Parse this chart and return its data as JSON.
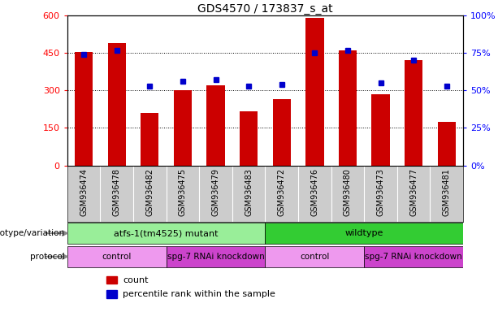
{
  "title": "GDS4570 / 173837_s_at",
  "samples": [
    "GSM936474",
    "GSM936478",
    "GSM936482",
    "GSM936475",
    "GSM936479",
    "GSM936483",
    "GSM936472",
    "GSM936476",
    "GSM936480",
    "GSM936473",
    "GSM936477",
    "GSM936481"
  ],
  "counts": [
    455,
    490,
    210,
    300,
    320,
    215,
    265,
    590,
    460,
    285,
    420,
    175
  ],
  "percentile_ranks": [
    74,
    77,
    53,
    56,
    57,
    53,
    54,
    75,
    77,
    55,
    70,
    53
  ],
  "bar_color": "#cc0000",
  "dot_color": "#0000cc",
  "left_yticks": [
    0,
    150,
    300,
    450,
    600
  ],
  "right_yticks": [
    0,
    25,
    50,
    75,
    100
  ],
  "right_ytick_labels": [
    "0%",
    "25%",
    "50%",
    "75%",
    "100%"
  ],
  "genotype_groups": [
    {
      "label": "atfs-1(tm4525) mutant",
      "start": 0,
      "end": 6,
      "color": "#99ee99"
    },
    {
      "label": "wildtype",
      "start": 6,
      "end": 12,
      "color": "#33cc33"
    }
  ],
  "protocol_groups": [
    {
      "label": "control",
      "start": 0,
      "end": 3,
      "color": "#ee99ee"
    },
    {
      "label": "spg-7 RNAi knockdown",
      "start": 3,
      "end": 6,
      "color": "#cc44cc"
    },
    {
      "label": "control",
      "start": 6,
      "end": 9,
      "color": "#ee99ee"
    },
    {
      "label": "spg-7 RNAi knockdown",
      "start": 9,
      "end": 12,
      "color": "#cc44cc"
    }
  ],
  "legend_count_label": "count",
  "legend_percentile_label": "percentile rank within the sample",
  "genotype_label": "genotype/variation",
  "protocol_label": "protocol",
  "bg_color": "#ffffff",
  "sample_bg_color": "#cccccc",
  "bar_width": 0.55,
  "ylim_left": [
    0,
    600
  ],
  "ylim_right": [
    0,
    100
  ]
}
